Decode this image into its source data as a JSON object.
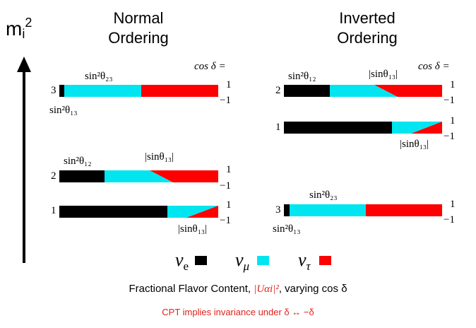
{
  "axis": {
    "label": "m",
    "subscript": "i",
    "superscript": "2"
  },
  "headings": {
    "normal": [
      "Normal",
      "Ordering"
    ],
    "inverted": [
      "Inverted",
      "Ordering"
    ]
  },
  "cos_delta_label": "cos δ =",
  "cos_values": {
    "plus": "1",
    "minus": "−1"
  },
  "normal": {
    "m3": {
      "index": "3",
      "top_label": "sin²θ₂₃",
      "bottom_label": "sin²θ₁₃"
    },
    "m2": {
      "index": "2",
      "top_label": "sin²θ₁₂",
      "abs_label": "|sinθ₁₃|"
    },
    "m1": {
      "index": "1",
      "abs_label": "|sinθ₁₃|"
    }
  },
  "inverted": {
    "m2": {
      "index": "2",
      "top_label": "sin²θ₁₂",
      "abs_label": "|sinθ₁₃|"
    },
    "m1": {
      "index": "1",
      "abs_label": "|sinθ₁₃|"
    },
    "m3": {
      "index": "3",
      "top_label": "sin²θ₂₃",
      "bottom_label": "sin²θ₁₃"
    }
  },
  "legend": [
    {
      "symbol": "ν",
      "sub": "e",
      "color": "#000000"
    },
    {
      "symbol": "ν",
      "sub": "μ",
      "color": "#00e5f0"
    },
    {
      "symbol": "ν",
      "sub": "τ",
      "color": "#ff0000"
    }
  ],
  "caption": {
    "prefix": "Fractional Flavor Content, ",
    "formula": "|Uαi|²",
    "suffix": ", varying cos δ"
  },
  "note": "CPT implies invariance under δ ↔ −δ",
  "colors": {
    "nu_e": "#000000",
    "nu_mu": "#00e5f0",
    "nu_tau": "#ff0000",
    "note": "#e0201b"
  }
}
